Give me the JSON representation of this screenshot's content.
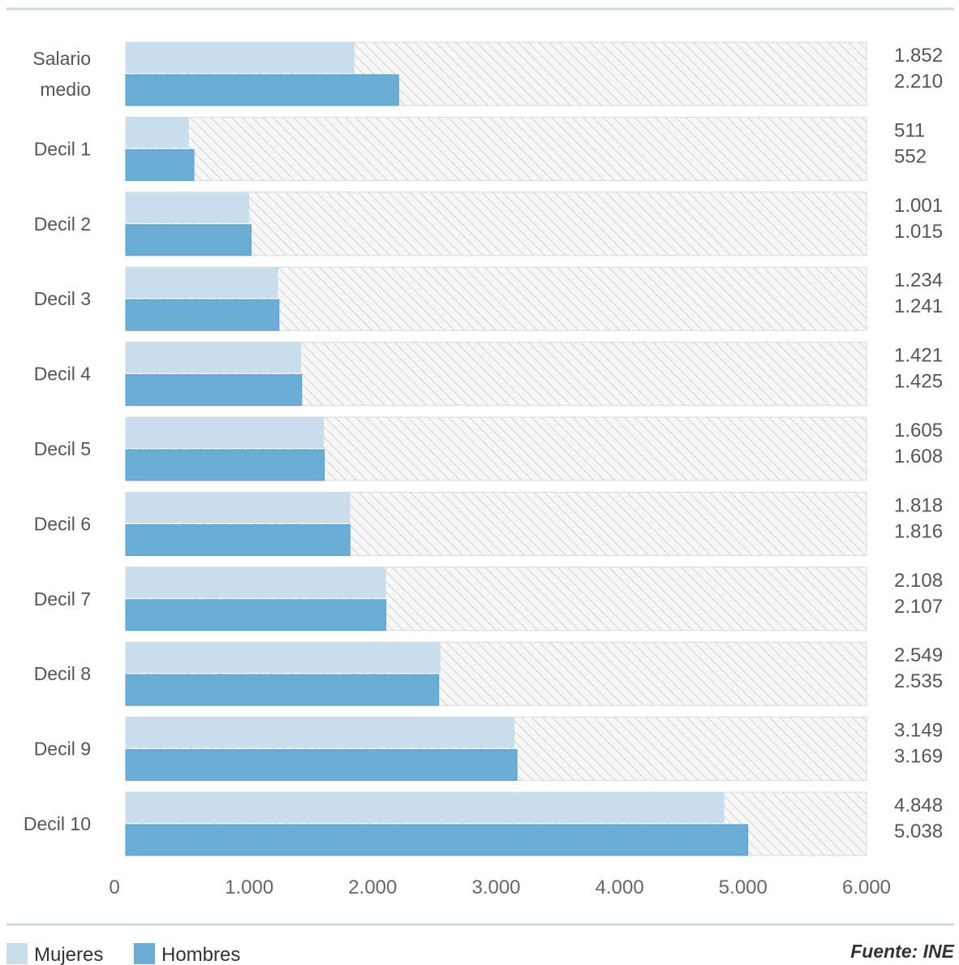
{
  "chart_data": {
    "type": "bar",
    "orientation": "horizontal",
    "categories": [
      [
        "Salario",
        "medio"
      ],
      [
        "Decil 1"
      ],
      [
        "Decil 2"
      ],
      [
        "Decil 3"
      ],
      [
        "Decil 4"
      ],
      [
        "Decil 5"
      ],
      [
        "Decil 6"
      ],
      [
        "Decil 7"
      ],
      [
        "Decil 8"
      ],
      [
        "Decil 9"
      ],
      [
        "Decil 10"
      ]
    ],
    "series": [
      {
        "name": "Mujeres",
        "color": "#c9deec",
        "values": [
          1852,
          511,
          1001,
          1234,
          1421,
          1605,
          1818,
          2108,
          2549,
          3149,
          4848
        ],
        "labels": [
          "1.852",
          "511",
          "1.001",
          "1.234",
          "1.421",
          "1.605",
          "1.818",
          "2.108",
          "2.549",
          "3.149",
          "4.848"
        ]
      },
      {
        "name": "Hombres",
        "color": "#6aaed6",
        "values": [
          2210,
          552,
          1015,
          1241,
          1425,
          1608,
          1816,
          2107,
          2535,
          3169,
          5038
        ],
        "labels": [
          "2.210",
          "552",
          "1.015",
          "1.241",
          "1.425",
          "1.608",
          "1.816",
          "2.107",
          "2.535",
          "3.169",
          "5.038"
        ]
      }
    ],
    "xlim": [
      0,
      6000
    ],
    "x_ticks": [
      0,
      1000,
      2000,
      3000,
      4000,
      5000,
      6000
    ],
    "x_tick_labels": [
      "0",
      "1.000",
      "2.000",
      "3.000",
      "4.000",
      "5.000",
      "6.000"
    ],
    "background_pattern": "hatched",
    "legend_position": "bottom-left",
    "source": "Fuente: INE"
  }
}
